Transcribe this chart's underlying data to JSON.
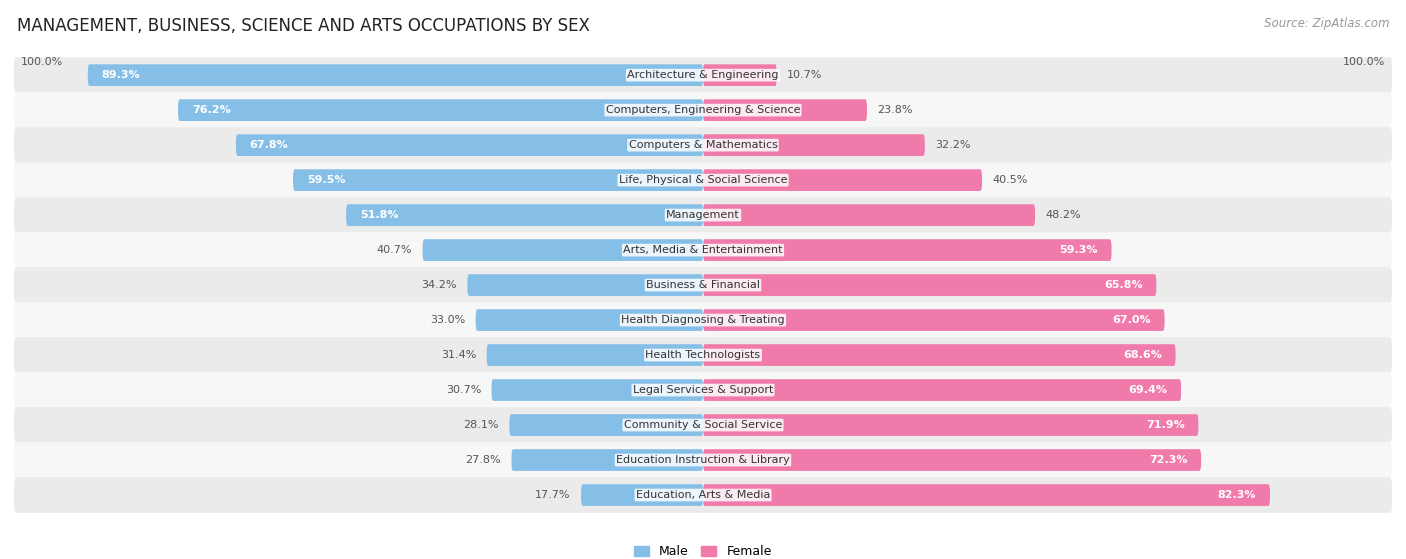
{
  "title": "MANAGEMENT, BUSINESS, SCIENCE AND ARTS OCCUPATIONS BY SEX",
  "source": "Source: ZipAtlas.com",
  "categories": [
    "Architecture & Engineering",
    "Computers, Engineering & Science",
    "Computers & Mathematics",
    "Life, Physical & Social Science",
    "Management",
    "Arts, Media & Entertainment",
    "Business & Financial",
    "Health Diagnosing & Treating",
    "Health Technologists",
    "Legal Services & Support",
    "Community & Social Service",
    "Education Instruction & Library",
    "Education, Arts & Media"
  ],
  "male_pct": [
    89.3,
    76.2,
    67.8,
    59.5,
    51.8,
    40.7,
    34.2,
    33.0,
    31.4,
    30.7,
    28.1,
    27.8,
    17.7
  ],
  "female_pct": [
    10.7,
    23.8,
    32.2,
    40.5,
    48.2,
    59.3,
    65.8,
    67.0,
    68.6,
    69.4,
    71.9,
    72.3,
    82.3
  ],
  "male_color": "#85bfe8",
  "female_color": "#f07aaa",
  "bg_row_even": "#ebebeb",
  "bg_row_odd": "#f7f7f7",
  "title_fontsize": 12,
  "source_fontsize": 8.5,
  "label_fontsize": 8,
  "bar_label_fontsize": 8,
  "legend_fontsize": 9
}
